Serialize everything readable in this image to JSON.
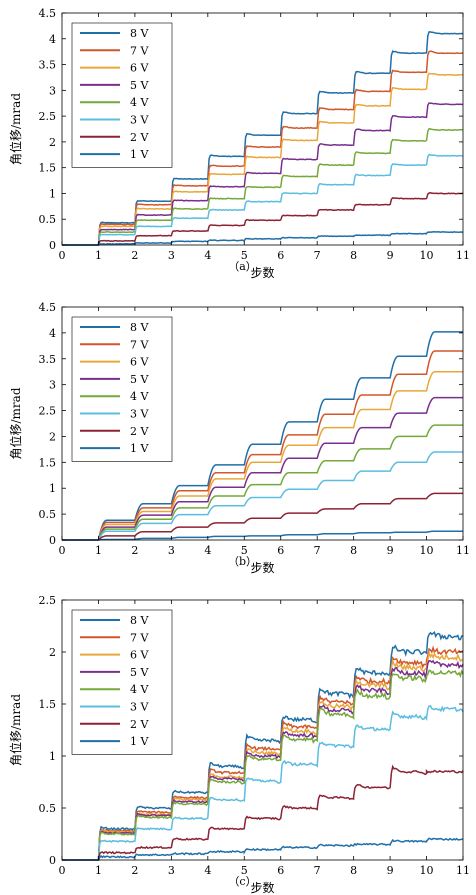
{
  "chart_data": [
    {
      "type": "line",
      "caption": "（a）",
      "xlabel": "步数",
      "ylabel": "角位移/mrad",
      "xlim": [
        0,
        11
      ],
      "ylim": [
        0,
        4.5
      ],
      "xticks": [
        0,
        1,
        2,
        3,
        4,
        5,
        6,
        7,
        8,
        9,
        10,
        11
      ],
      "yticks": [
        0,
        0.5,
        1,
        1.5,
        2,
        2.5,
        3,
        3.5,
        4,
        4.5
      ],
      "legend_position": "top-left",
      "grid": false,
      "style": "staircase",
      "series": [
        {
          "name": "8 V",
          "color": "#1f6fa8",
          "levels": [
            0,
            0.43,
            0.85,
            1.28,
            1.72,
            2.13,
            2.55,
            2.95,
            3.33,
            3.72,
            4.1
          ]
        },
        {
          "name": "7 V",
          "color": "#d2572a",
          "levels": [
            0,
            0.4,
            0.78,
            1.15,
            1.53,
            1.9,
            2.27,
            2.63,
            2.98,
            3.35,
            3.72
          ]
        },
        {
          "name": "6 V",
          "color": "#e9a73a",
          "levels": [
            0,
            0.36,
            0.7,
            1.03,
            1.37,
            1.7,
            2.03,
            2.37,
            2.7,
            3.02,
            3.3
          ]
        },
        {
          "name": "5 V",
          "color": "#7a2f8e",
          "levels": [
            0,
            0.3,
            0.58,
            0.86,
            1.13,
            1.39,
            1.66,
            1.94,
            2.22,
            2.48,
            2.73
          ]
        },
        {
          "name": "4 V",
          "color": "#74a93a",
          "levels": [
            0,
            0.25,
            0.48,
            0.7,
            0.9,
            1.12,
            1.33,
            1.55,
            1.78,
            2.02,
            2.23
          ]
        },
        {
          "name": "3 V",
          "color": "#5bbde0",
          "levels": [
            0,
            0.2,
            0.36,
            0.52,
            0.68,
            0.84,
            1.0,
            1.17,
            1.35,
            1.55,
            1.73
          ]
        },
        {
          "name": "2 V",
          "color": "#8c2233",
          "levels": [
            0,
            0.08,
            0.18,
            0.27,
            0.38,
            0.48,
            0.57,
            0.68,
            0.78,
            0.9,
            1.0
          ]
        },
        {
          "name": "1 V",
          "color": "#1f6fa8",
          "levels": [
            0,
            0.02,
            0.04,
            0.07,
            0.09,
            0.12,
            0.14,
            0.17,
            0.19,
            0.22,
            0.25
          ]
        }
      ]
    },
    {
      "type": "line",
      "caption": "（b）",
      "xlabel": "步数",
      "ylabel": "角位移/mrad",
      "xlim": [
        0,
        11
      ],
      "ylim": [
        0,
        4.5
      ],
      "xticks": [
        0,
        1,
        2,
        3,
        4,
        5,
        6,
        7,
        8,
        9,
        10,
        11
      ],
      "yticks": [
        0,
        0.5,
        1,
        1.5,
        2,
        2.5,
        3,
        3.5,
        4,
        4.5
      ],
      "legend_position": "top-left",
      "grid": false,
      "style": "smooth-staircase",
      "series": [
        {
          "name": "8 V",
          "color": "#1f6fa8",
          "levels": [
            0,
            0.38,
            0.7,
            1.05,
            1.45,
            1.85,
            2.28,
            2.72,
            3.13,
            3.55,
            4.02
          ]
        },
        {
          "name": "7 V",
          "color": "#d2572a",
          "levels": [
            0,
            0.34,
            0.62,
            0.95,
            1.3,
            1.65,
            2.03,
            2.43,
            2.8,
            3.2,
            3.65
          ]
        },
        {
          "name": "6 V",
          "color": "#e9a73a",
          "levels": [
            0,
            0.3,
            0.55,
            0.85,
            1.18,
            1.5,
            1.83,
            2.17,
            2.52,
            2.88,
            3.25
          ]
        },
        {
          "name": "5 V",
          "color": "#7a2f8e",
          "levels": [
            0,
            0.25,
            0.48,
            0.74,
            1.02,
            1.3,
            1.58,
            1.87,
            2.17,
            2.45,
            2.75
          ]
        },
        {
          "name": "4 V",
          "color": "#74a93a",
          "levels": [
            0,
            0.21,
            0.4,
            0.62,
            0.85,
            1.07,
            1.3,
            1.53,
            1.76,
            2.0,
            2.22
          ]
        },
        {
          "name": "3 V",
          "color": "#5bbde0",
          "levels": [
            0,
            0.17,
            0.32,
            0.49,
            0.66,
            0.82,
            0.98,
            1.15,
            1.33,
            1.5,
            1.7
          ]
        },
        {
          "name": "2 V",
          "color": "#8c2233",
          "levels": [
            0,
            0.08,
            0.16,
            0.25,
            0.33,
            0.42,
            0.52,
            0.6,
            0.7,
            0.8,
            0.9
          ]
        },
        {
          "name": "1 V",
          "color": "#1f6fa8",
          "levels": [
            0,
            0.01,
            0.03,
            0.05,
            0.07,
            0.08,
            0.1,
            0.12,
            0.14,
            0.15,
            0.17
          ]
        }
      ]
    },
    {
      "type": "line",
      "caption": "（c）",
      "xlabel": "步数",
      "ylabel": "角位移/mrad",
      "xlim": [
        0,
        11
      ],
      "ylim": [
        0,
        2.5
      ],
      "xticks": [
        0,
        1,
        2,
        3,
        4,
        5,
        6,
        7,
        8,
        9,
        10,
        11
      ],
      "yticks": [
        0,
        0.5,
        1,
        1.5,
        2,
        2.5
      ],
      "legend_position": "top-left",
      "grid": false,
      "style": "noisy-staircase",
      "series": [
        {
          "name": "8 V",
          "color": "#1f6fa8",
          "levels": [
            0,
            0.3,
            0.5,
            0.65,
            0.9,
            1.15,
            1.35,
            1.6,
            1.8,
            2.0,
            2.15
          ]
        },
        {
          "name": "7 V",
          "color": "#d2572a",
          "levels": [
            0,
            0.28,
            0.46,
            0.6,
            0.84,
            1.07,
            1.28,
            1.52,
            1.72,
            1.9,
            2.0
          ]
        },
        {
          "name": "6 V",
          "color": "#e9a73a",
          "levels": [
            0,
            0.27,
            0.44,
            0.58,
            0.8,
            1.03,
            1.24,
            1.48,
            1.68,
            1.85,
            1.95
          ]
        },
        {
          "name": "5 V",
          "color": "#7a2f8e",
          "levels": [
            0,
            0.26,
            0.43,
            0.56,
            0.78,
            1.0,
            1.2,
            1.44,
            1.63,
            1.8,
            1.88
          ]
        },
        {
          "name": "4 V",
          "color": "#74a93a",
          "levels": [
            0,
            0.25,
            0.41,
            0.54,
            0.75,
            0.97,
            1.16,
            1.4,
            1.58,
            1.75,
            1.8
          ]
        },
        {
          "name": "3 V",
          "color": "#5bbde0",
          "levels": [
            0,
            0.18,
            0.3,
            0.4,
            0.58,
            0.76,
            0.92,
            1.1,
            1.26,
            1.38,
            1.45
          ]
        },
        {
          "name": "2 V",
          "color": "#8c2233",
          "levels": [
            0,
            0.07,
            0.12,
            0.2,
            0.3,
            0.4,
            0.5,
            0.6,
            0.7,
            0.85,
            0.85
          ]
        },
        {
          "name": "1 V",
          "color": "#1f6fa8",
          "levels": [
            0,
            0.03,
            0.05,
            0.06,
            0.08,
            0.1,
            0.12,
            0.14,
            0.15,
            0.18,
            0.2
          ]
        }
      ]
    }
  ]
}
